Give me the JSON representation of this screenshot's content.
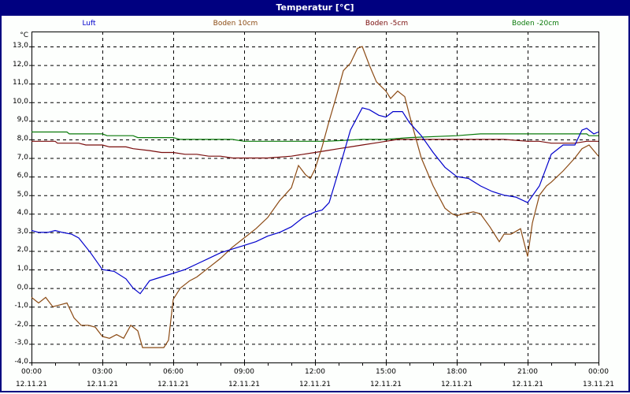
{
  "window": {
    "title": "Temperatur [°C]"
  },
  "colors": {
    "titlebar": "#000080",
    "luft": "#0000cc",
    "boden10": "#8b4a13",
    "boden5": "#7a0d0d",
    "boden20": "#0a7a0a",
    "grid": "#000000"
  },
  "chart_data": {
    "type": "line",
    "title": "Temperatur [°C]",
    "ylabel": "°C",
    "xlabel": "",
    "ylim": [
      -4,
      13
    ],
    "xlim_hours": [
      0,
      24
    ],
    "grid": true,
    "legend_position": "top",
    "y_ticks": [
      "13,0",
      "12,0",
      "11,0",
      "10,0",
      "9,0",
      "8,0",
      "7,0",
      "6,0",
      "5,0",
      "4,0",
      "3,0",
      "2,0",
      "1,0",
      "0,0",
      "-1,0",
      "-2,0",
      "-3,0",
      "-4,0"
    ],
    "x_ticks": [
      {
        "time": "00:00",
        "date": "12.11.21"
      },
      {
        "time": "03:00",
        "date": "12.11.21"
      },
      {
        "time": "06:00",
        "date": "12.11.21"
      },
      {
        "time": "09:00",
        "date": "12.11.21"
      },
      {
        "time": "12:00",
        "date": "12.11.21"
      },
      {
        "time": "15:00",
        "date": "12.11.21"
      },
      {
        "time": "18:00",
        "date": "12.11.21"
      },
      {
        "time": "21:00",
        "date": "12.11.21"
      },
      {
        "time": "00:00",
        "date": "13.11.21"
      }
    ],
    "series": [
      {
        "name": "Luft",
        "color": "#0000cc",
        "x": [
          0,
          0.3,
          0.7,
          1,
          1.3,
          1.7,
          2,
          2.5,
          3,
          3.5,
          4,
          4.3,
          4.6,
          5,
          5.5,
          6,
          6.5,
          7,
          7.5,
          8,
          8.5,
          9,
          9.5,
          10,
          10.5,
          11,
          11.5,
          12,
          12.3,
          12.6,
          13,
          13.5,
          14,
          14.3,
          14.7,
          15,
          15.3,
          15.7,
          16,
          16.5,
          17,
          17.5,
          18,
          18.5,
          19,
          19.5,
          20,
          20.5,
          21,
          21.5,
          22,
          22.5,
          23,
          23.3,
          23.5,
          23.8,
          24
        ],
        "values": [
          3.1,
          3.0,
          3.0,
          3.1,
          3.0,
          2.9,
          2.7,
          1.9,
          1.0,
          0.9,
          0.5,
          0.0,
          -0.3,
          0.4,
          0.6,
          0.8,
          1.0,
          1.3,
          1.6,
          1.9,
          2.1,
          2.3,
          2.5,
          2.8,
          3.0,
          3.3,
          3.8,
          4.1,
          4.2,
          4.6,
          6.3,
          8.5,
          9.7,
          9.6,
          9.3,
          9.2,
          9.5,
          9.5,
          8.9,
          8.2,
          7.3,
          6.5,
          6.0,
          5.9,
          5.5,
          5.2,
          5.0,
          4.9,
          4.6,
          5.5,
          7.2,
          7.7,
          7.7,
          8.5,
          8.6,
          8.3,
          8.4
        ]
      },
      {
        "name": "Boden 10cm",
        "color": "#8b4a13",
        "x": [
          0,
          0.3,
          0.6,
          0.9,
          1.2,
          1.5,
          1.8,
          2.1,
          2.4,
          2.7,
          3,
          3.3,
          3.6,
          3.9,
          4.2,
          4.5,
          4.7,
          5,
          5.3,
          5.6,
          5.8,
          6,
          6.3,
          6.7,
          7,
          7.5,
          8,
          8.5,
          9,
          9.5,
          10,
          10.5,
          11,
          11.3,
          11.6,
          11.8,
          12,
          12.3,
          12.6,
          12.9,
          13.2,
          13.5,
          13.8,
          14,
          14.3,
          14.6,
          15,
          15.2,
          15.5,
          15.8,
          16,
          16.5,
          17,
          17.5,
          17.8,
          18,
          18.3,
          18.7,
          19,
          19.4,
          19.8,
          20,
          20.3,
          20.7,
          21,
          21.2,
          21.5,
          21.8,
          22,
          22.5,
          23,
          23.3,
          23.6,
          24
        ],
        "values": [
          -0.5,
          -0.8,
          -0.5,
          -1.0,
          -0.9,
          -0.8,
          -1.6,
          -2.0,
          -2.0,
          -2.1,
          -2.6,
          -2.7,
          -2.5,
          -2.7,
          -2.0,
          -2.3,
          -3.2,
          -3.2,
          -3.2,
          -3.2,
          -2.8,
          -0.6,
          0.0,
          0.4,
          0.6,
          1.1,
          1.6,
          2.2,
          2.7,
          3.2,
          3.8,
          4.7,
          5.4,
          6.6,
          6.1,
          5.9,
          6.4,
          7.6,
          9.0,
          10.3,
          11.7,
          12.1,
          12.9,
          13.0,
          12.0,
          11.1,
          10.6,
          10.2,
          10.6,
          10.3,
          9.3,
          7.0,
          5.5,
          4.3,
          4.0,
          3.9,
          4.0,
          4.1,
          4.0,
          3.3,
          2.5,
          2.9,
          2.9,
          3.2,
          1.7,
          3.5,
          5.0,
          5.5,
          5.7,
          6.3,
          7.0,
          7.5,
          7.7,
          7.1
        ]
      },
      {
        "name": "Boden -5cm",
        "color": "#7a0d0d",
        "x": [
          0,
          1,
          1.1,
          2,
          2.3,
          3,
          3.3,
          4,
          4.3,
          5,
          5.5,
          6,
          6.5,
          7,
          7.5,
          8,
          8.5,
          9,
          10,
          11,
          11.5,
          12,
          12.5,
          13,
          13.5,
          14,
          14.5,
          15,
          15.5,
          16,
          17,
          18,
          19,
          20,
          21,
          21.5,
          22,
          22.5,
          23,
          23.5,
          24
        ],
        "values": [
          7.9,
          7.9,
          7.8,
          7.8,
          7.7,
          7.7,
          7.6,
          7.6,
          7.5,
          7.4,
          7.3,
          7.3,
          7.2,
          7.2,
          7.1,
          7.1,
          7.0,
          7.0,
          7.0,
          7.1,
          7.2,
          7.3,
          7.4,
          7.5,
          7.6,
          7.7,
          7.8,
          7.9,
          8.0,
          8.0,
          8.0,
          8.0,
          8.0,
          8.0,
          7.9,
          7.9,
          7.8,
          7.8,
          7.8,
          7.9,
          7.9
        ]
      },
      {
        "name": "Boden -20cm",
        "color": "#0a7a0a",
        "x": [
          0,
          1.5,
          1.6,
          3,
          3.2,
          4.3,
          4.5,
          6,
          6.3,
          8.5,
          9,
          12,
          12.5,
          14,
          14.5,
          15,
          16,
          18,
          19,
          21,
          22,
          23.5,
          23.6,
          24
        ],
        "values": [
          8.4,
          8.4,
          8.3,
          8.3,
          8.2,
          8.2,
          8.1,
          8.1,
          8.0,
          8.0,
          7.9,
          7.9,
          7.9,
          8.0,
          8.0,
          8.0,
          8.1,
          8.2,
          8.3,
          8.3,
          8.3,
          8.3,
          8.2,
          8.2
        ]
      }
    ]
  }
}
